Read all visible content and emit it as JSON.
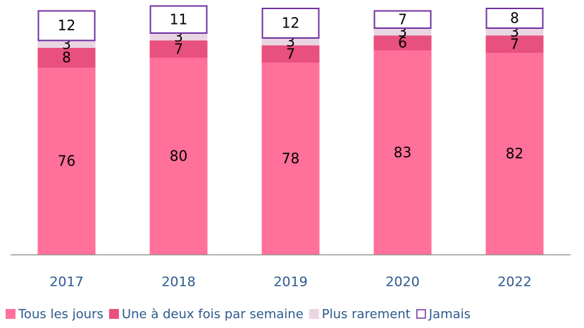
{
  "chart_data": {
    "type": "stacked_bar",
    "categories": [
      "2017",
      "2018",
      "2019",
      "2020",
      "2022"
    ],
    "series": [
      {
        "name": "Tous les jours",
        "color": "#ff709b",
        "values": [
          76,
          80,
          78,
          83,
          82
        ]
      },
      {
        "name": "Une à deux fois par semaine",
        "color": "#e8507f",
        "values": [
          8,
          7,
          7,
          6,
          7
        ]
      },
      {
        "name": "Plus rarement",
        "color": "#ead6e2",
        "values": [
          3,
          3,
          3,
          3,
          3
        ]
      },
      {
        "name": "Jamais",
        "color": "#7030a0",
        "values": [
          12,
          11,
          12,
          7,
          8
        ]
      }
    ],
    "ylim": [
      0,
      100
    ]
  }
}
